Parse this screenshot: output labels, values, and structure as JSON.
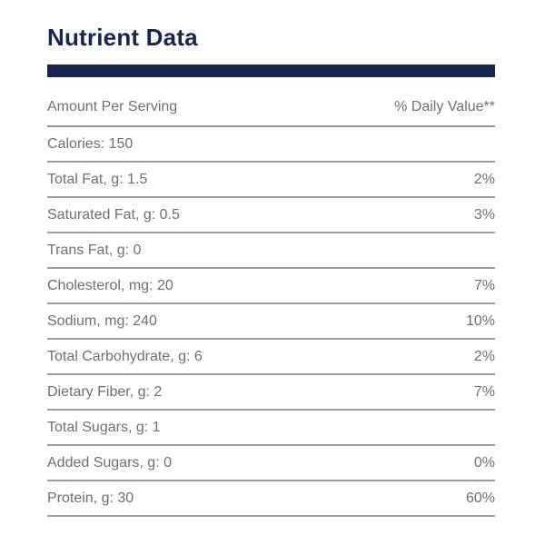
{
  "page": {
    "title": "Nutrient Data"
  },
  "colors": {
    "navy": "#17264e",
    "text_gray": "#6d7073",
    "line_gray": "#9b9da0"
  },
  "table": {
    "header": {
      "left": "Amount Per Serving",
      "right": "% Daily Value**"
    },
    "rows": [
      {
        "label": "Calories: 150",
        "daily_value": ""
      },
      {
        "label": "Total Fat, g: 1.5",
        "daily_value": "2%"
      },
      {
        "label": "Saturated Fat, g: 0.5",
        "daily_value": "3%"
      },
      {
        "label": "Trans Fat, g: 0",
        "daily_value": ""
      },
      {
        "label": "Cholesterol, mg: 20",
        "daily_value": "7%"
      },
      {
        "label": "Sodium, mg: 240",
        "daily_value": "10%"
      },
      {
        "label": "Total Carbohydrate, g: 6",
        "daily_value": "2%"
      },
      {
        "label": "Dietary Fiber, g: 2",
        "daily_value": "7%"
      },
      {
        "label": "Total Sugars, g: 1",
        "daily_value": ""
      },
      {
        "label": "Added Sugars, g: 0",
        "daily_value": "0%"
      },
      {
        "label": "Protein, g: 30",
        "daily_value": "60%"
      }
    ]
  },
  "chart_data": {
    "type": "table",
    "title": "Nutrient Data",
    "columns": [
      "Amount Per Serving",
      "% Daily Value**"
    ],
    "rows": [
      [
        "Calories: 150",
        ""
      ],
      [
        "Total Fat, g: 1.5",
        "2%"
      ],
      [
        "Saturated Fat, g: 0.5",
        "3%"
      ],
      [
        "Trans Fat, g: 0",
        ""
      ],
      [
        "Cholesterol, mg: 20",
        "7%"
      ],
      [
        "Sodium, mg: 240",
        "10%"
      ],
      [
        "Total Carbohydrate, g: 6",
        "2%"
      ],
      [
        "Dietary Fiber, g: 2",
        "7%"
      ],
      [
        "Total Sugars, g: 1",
        ""
      ],
      [
        "Added Sugars, g: 0",
        "0%"
      ],
      [
        "Protein, g: 30",
        "60%"
      ]
    ]
  }
}
